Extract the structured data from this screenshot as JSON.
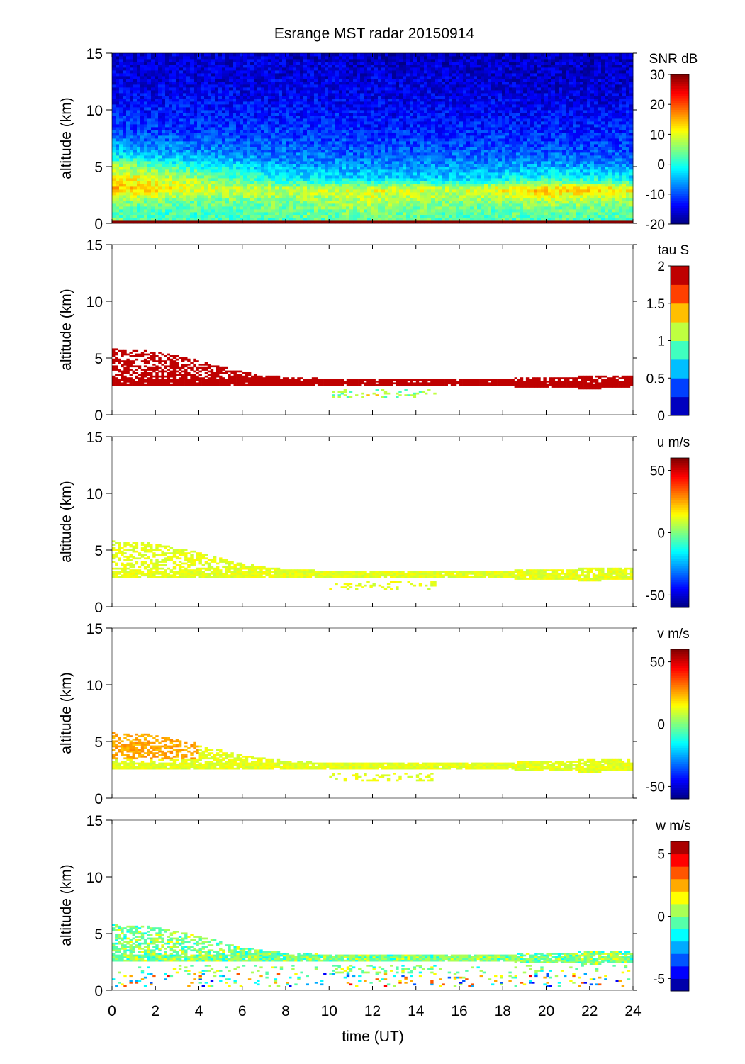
{
  "chart_data": {
    "type": "heatmap",
    "title": "Esrange MST radar 20150914",
    "xlabel": "time (UT)",
    "xlim": [
      0,
      24
    ],
    "xticks": [
      "0",
      "2",
      "4",
      "6",
      "8",
      "10",
      "12",
      "14",
      "16",
      "18",
      "20",
      "22",
      "24"
    ],
    "layer": {
      "times": [
        0,
        2,
        4,
        6,
        8,
        10,
        12,
        14,
        16,
        18,
        20,
        22,
        24
      ],
      "top_km": [
        5.8,
        5.6,
        4.8,
        3.8,
        3.3,
        3.2,
        3.2,
        3.2,
        3.1,
        3.2,
        3.3,
        3.4,
        3.4
      ],
      "bottom_km": [
        2.5,
        2.6,
        2.6,
        2.6,
        2.5,
        2.6,
        2.5,
        2.5,
        2.6,
        2.5,
        2.4,
        2.3,
        2.4
      ]
    },
    "panels": [
      {
        "name": "snr",
        "ylabel": "altitude (km)",
        "ylim": [
          0,
          15
        ],
        "yticks": [
          "0",
          "5",
          "10",
          "15"
        ],
        "colorbar_label": "SNR dB",
        "clim": [
          -20,
          30
        ],
        "levels": 64,
        "cticks": [
          "30",
          "20",
          "10",
          "0",
          "-10",
          "-20"
        ],
        "profile_altitudes_km": [
          0,
          1,
          2,
          3,
          4,
          5,
          6,
          8,
          10,
          12,
          15
        ],
        "profile_times": [
          0,
          4,
          8,
          12,
          16,
          20,
          24
        ],
        "profile_snr_db": [
          [
            5,
            2,
            2,
            2,
            2,
            2,
            2
          ],
          [
            2,
            2,
            4,
            5,
            3,
            4,
            3
          ],
          [
            6,
            4,
            5,
            8,
            5,
            7,
            6
          ],
          [
            15,
            10,
            8,
            10,
            9,
            14,
            12
          ],
          [
            12,
            6,
            -2,
            -3,
            -4,
            0,
            -2
          ],
          [
            8,
            0,
            -5,
            -6,
            -6,
            -5,
            -6
          ],
          [
            -2,
            -6,
            -8,
            -9,
            -9,
            -9,
            -10
          ],
          [
            -10,
            -11,
            -11,
            -12,
            -12,
            -12,
            -12
          ],
          [
            -13,
            -13,
            -13,
            -14,
            -14,
            -14,
            -14
          ],
          [
            -15,
            -15,
            -15,
            -15,
            -15,
            -16,
            -16
          ],
          [
            -16,
            -16,
            -16,
            -17,
            -17,
            -17,
            -17
          ]
        ]
      },
      {
        "name": "tau",
        "ylabel": "altitude (km)",
        "ylim": [
          0,
          15
        ],
        "yticks": [
          "0",
          "5",
          "10",
          "15"
        ],
        "colorbar_label": "tau S",
        "clim": [
          0,
          2
        ],
        "levels": 8,
        "cticks": [
          "2",
          "1.5",
          "1",
          "0.5",
          "0"
        ],
        "layer_value": 2.0
      },
      {
        "name": "u",
        "ylabel": "altitude (km)",
        "ylim": [
          0,
          15
        ],
        "yticks": [
          "0",
          "5",
          "10",
          "15"
        ],
        "colorbar_label": "u m/s",
        "clim": [
          -60,
          60
        ],
        "levels": 64,
        "cticks": [
          "50",
          "0",
          "-50"
        ],
        "layer_value": 12
      },
      {
        "name": "v",
        "ylabel": "altitude (km)",
        "ylim": [
          0,
          15
        ],
        "yticks": [
          "0",
          "5",
          "10",
          "15"
        ],
        "colorbar_label": "v m/s",
        "clim": [
          -60,
          60
        ],
        "levels": 64,
        "cticks": [
          "50",
          "0",
          "-50"
        ],
        "layer_value": 15
      },
      {
        "name": "w",
        "ylabel": "altitude (km)",
        "ylim": [
          0,
          15
        ],
        "yticks": [
          "0",
          "5",
          "10",
          "15"
        ],
        "colorbar_label": "w m/s",
        "clim": [
          -6,
          6
        ],
        "levels": 12,
        "cticks": [
          "5",
          "0",
          "-5"
        ],
        "layer_value": 0
      }
    ]
  }
}
